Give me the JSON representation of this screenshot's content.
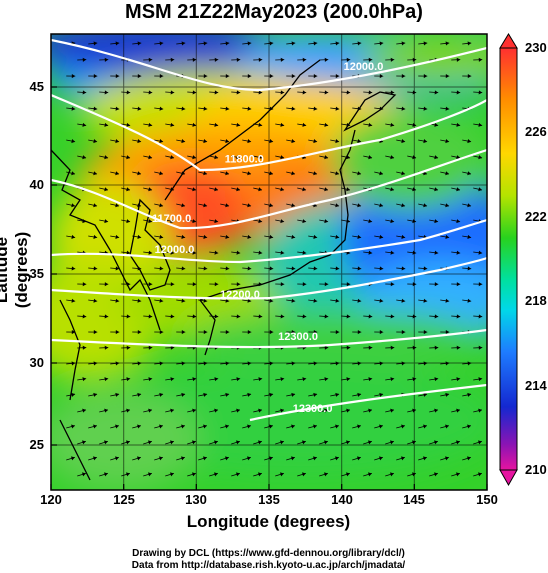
{
  "title": "MSM 21Z22May2023 (200.0hPa)",
  "map": {
    "xlabel": "Longitude (degrees)",
    "ylabel": "Latitude  (degrees)",
    "lon_ticks": [
      "120",
      "125",
      "130",
      "135",
      "140",
      "145",
      "150"
    ],
    "lat_ticks": [
      "45",
      "40",
      "35",
      "30",
      "25"
    ],
    "lon_range": [
      120,
      150
    ],
    "lat_range": [
      22.4,
      47.6
    ],
    "contours": [
      {
        "label": "11700.0",
        "lon": 128.3,
        "lat": 37.2
      },
      {
        "label": "11800.0",
        "lon": 133.3,
        "lat": 40.5
      },
      {
        "label": "12000.0",
        "lon": 141.5,
        "lat": 45.6
      },
      {
        "label": "12000.0",
        "lon": 128.5,
        "lat": 35.5
      },
      {
        "label": "12200.0",
        "lon": 133.0,
        "lat": 33.0
      },
      {
        "label": "12300.0",
        "lon": 137.0,
        "lat": 30.7
      },
      {
        "label": "12300.0",
        "lon": 138.0,
        "lat": 26.7
      }
    ]
  },
  "colorbar": {
    "ticks": [
      "230",
      "226",
      "222",
      "218",
      "214",
      "210"
    ],
    "min": 210,
    "max": 230
  },
  "credits": {
    "line1": "Drawing by DCL (https://www.gfd-dennou.org/library/dcl/)",
    "line2": "Data from http://database.rish.kyoto-u.ac.jp/arch/jmadata/"
  }
}
